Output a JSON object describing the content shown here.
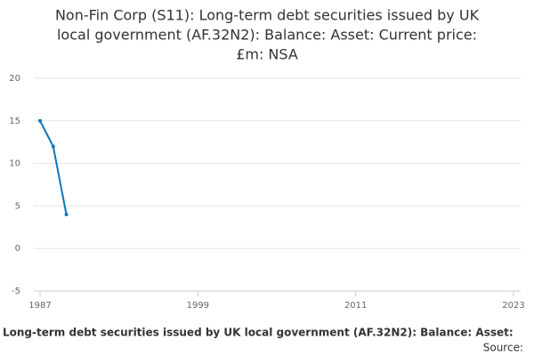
{
  "chart_data": {
    "type": "line",
    "title": [
      "Non-Fin Corp (S11): Long-term debt securities issued by UK",
      "local government (AF.32N2): Balance: Asset: Current price:",
      "£m: NSA"
    ],
    "x": [
      1987,
      1988,
      1989
    ],
    "series": [
      {
        "name": "Long-term debt securities issued by UK local government (AF.32N2): Balance: Asset:",
        "color": "#0a77bd",
        "values": [
          15,
          12,
          4
        ]
      }
    ],
    "xlim": [
      1987,
      2023
    ],
    "xticks": [
      1987,
      1999,
      2011,
      2023
    ],
    "ylim": [
      -5,
      20
    ],
    "yticks": [
      -5,
      0,
      5,
      10,
      15,
      20
    ],
    "grid": true,
    "source": "Source:"
  }
}
